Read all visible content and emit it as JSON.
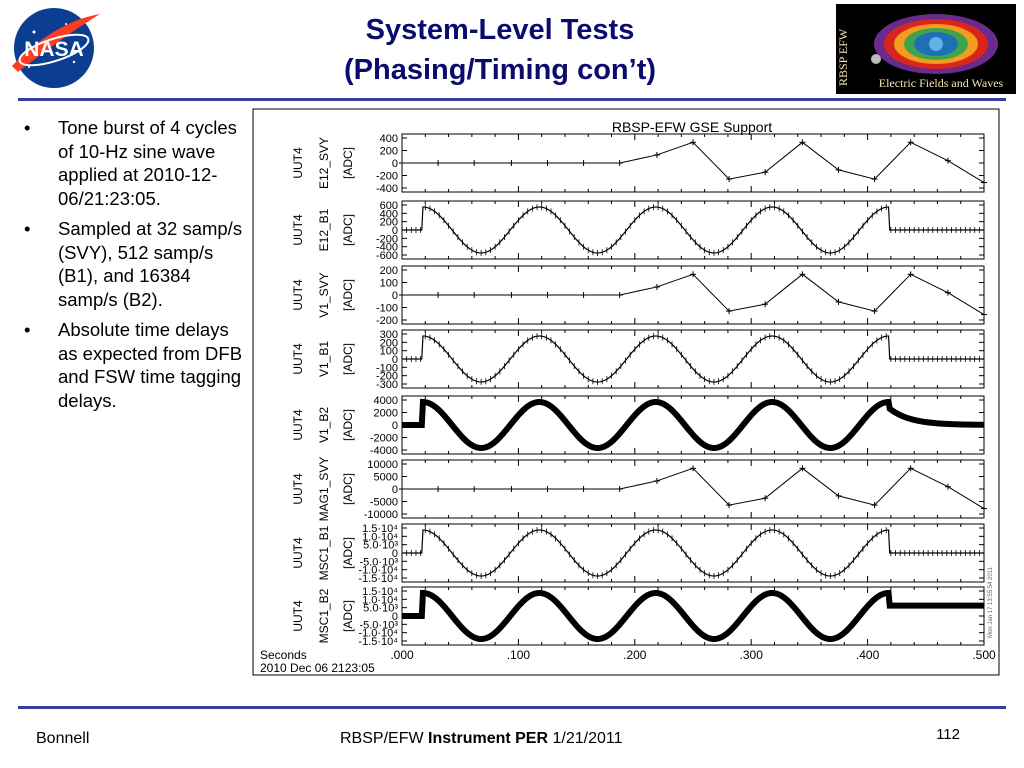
{
  "header": {
    "title_line1": "System-Level Tests",
    "title_line2": "(Phasing/Timing con’t)",
    "logo_left": "NASA",
    "logo_right_side": "RBSP EFW",
    "logo_right_caption": "Electric Fields and Waves"
  },
  "bullets": [
    "Tone burst of 4 cycles of 10-Hz sine wave applied at 2010-12-06/21:23:05.",
    "Sampled at 32 samp/s (SVY), 512 samp/s (B1), and 16384 samp/s (B2).",
    "Absolute time delays as expected from DFB and FSW time tagging delays."
  ],
  "plot": {
    "title": "RBSP-EFW GSE Support",
    "panels": [
      {
        "label1": "UUT4",
        "label2": "E12_SVY",
        "unit": "[ADC]",
        "ticks": [
          "400",
          "200",
          "0",
          "-200",
          "-400"
        ],
        "kind": "svy"
      },
      {
        "label1": "UUT4",
        "label2": "E12_B1",
        "unit": "[ADC]",
        "ticks": [
          "600",
          "400",
          "200",
          "0",
          "-200",
          "-400",
          "-600"
        ],
        "kind": "b1"
      },
      {
        "label1": "UUT4",
        "label2": "V1_SVY",
        "unit": "[ADC]",
        "ticks": [
          "200",
          "100",
          "0",
          "-100",
          "-200"
        ],
        "kind": "svy"
      },
      {
        "label1": "UUT4",
        "label2": "V1_B1",
        "unit": "[ADC]",
        "ticks": [
          "300",
          "200",
          "100",
          "0",
          "-100",
          "-200",
          "-300"
        ],
        "kind": "b1"
      },
      {
        "label1": "UUT4",
        "label2": "V1_B2",
        "unit": "[ADC]",
        "ticks": [
          "4000",
          "2000",
          "0",
          "-2000",
          "-4000"
        ],
        "kind": "b2v"
      },
      {
        "label1": "UUT4",
        "label2": "MAG1_SVY",
        "unit": "[ADC]",
        "ticks": [
          "10000",
          "5000",
          "0",
          "-5000",
          "-10000"
        ],
        "kind": "svy"
      },
      {
        "label1": "UUT4",
        "label2": "MSC1_B1",
        "unit": "[ADC]",
        "ticks": [
          "1.5·10⁴",
          "1.0·10⁴",
          "5.0·10³",
          "0",
          "-5.0·10³",
          "-1.0·10⁴",
          "-1.5·10⁴"
        ],
        "kind": "b1"
      },
      {
        "label1": "UUT4",
        "label2": "MSC1_B2",
        "unit": "[ADC]",
        "ticks": [
          "1.5·10⁴",
          "1.0·10⁴",
          "5.0·10³",
          "0",
          "-5.0·10³",
          "-1.0·10⁴",
          "-1.5·10⁴"
        ],
        "kind": "b2m"
      }
    ],
    "x_ticks": [
      ".000",
      ".100",
      ".200",
      ".300",
      ".400",
      ".500"
    ],
    "x_label": "Seconds",
    "x_date": "2010 Dec 06 2123:05",
    "side_stamp": "Mon Jan 17 13:55:54 2011"
  },
  "footer": {
    "left": "Bonnell",
    "mid_prefix": "RBSP/EFW",
    "mid_bold": "Instrument PER",
    "mid_suffix": "1/21/2011",
    "page": "112"
  },
  "colors": {
    "title": "#0b0b6e",
    "rule": "#3c3c9c"
  }
}
